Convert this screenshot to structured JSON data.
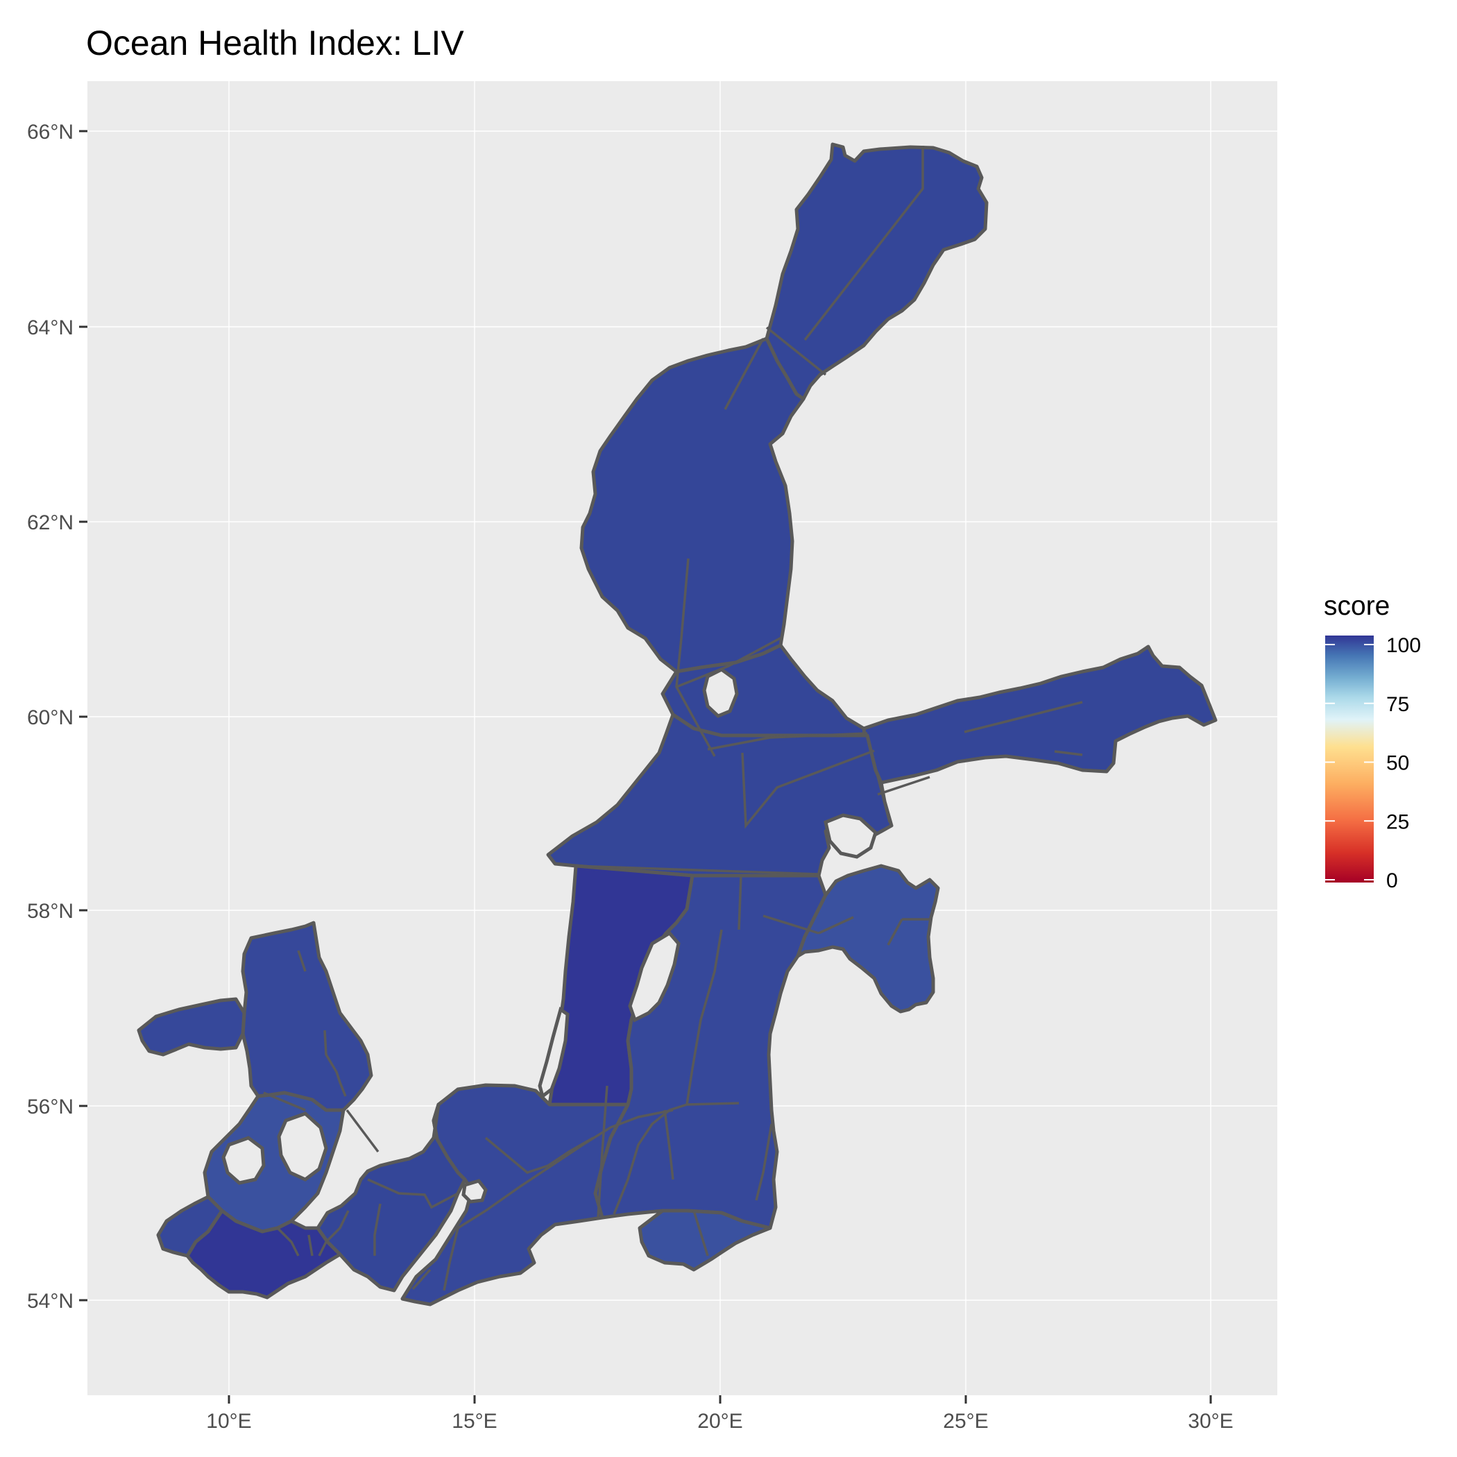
{
  "title": "Ocean Health Index: LIV",
  "chart_data": {
    "type": "choropleth-map",
    "title": "Ocean Health Index: LIV",
    "x_ticks": [
      "10°E",
      "15°E",
      "20°E",
      "25°E",
      "30°E"
    ],
    "y_ticks": [
      "54°N",
      "56°N",
      "58°N",
      "60°N",
      "62°N",
      "64°N",
      "66°N"
    ],
    "xlim": [
      7.1,
      31.3
    ],
    "ylim": [
      53.1,
      66.5
    ],
    "grid": true,
    "legend": {
      "title": "score",
      "position": "right",
      "range": [
        0,
        100
      ],
      "breaks": [
        0,
        25,
        50,
        75,
        100
      ],
      "break_labels": [
        "0",
        "25",
        "50",
        "75",
        "100"
      ],
      "palette": [
        "#a50026",
        "#d73027",
        "#f46d43",
        "#fdae61",
        "#fee090",
        "#e0f3f8",
        "#abd9e9",
        "#74add1",
        "#4575b4",
        "#313695"
      ]
    },
    "colors": {
      "panel_background": "#ebebeb",
      "grid": "#ffffff",
      "outline": "#595959",
      "score_97": "#344698",
      "score_95": "#36489a",
      "score_100": "#313695",
      "score_92": "#3a519f"
    }
  }
}
